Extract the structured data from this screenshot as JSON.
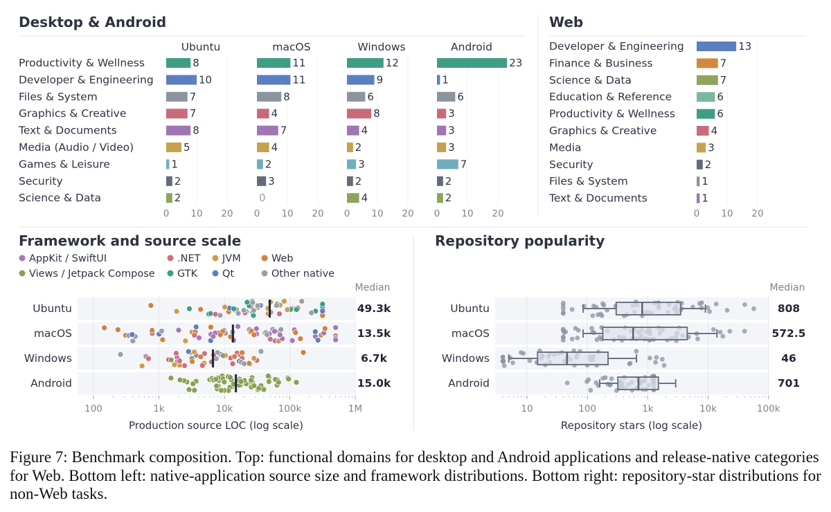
{
  "sections": {
    "desktop_android": "Desktop & Android",
    "web": "Web",
    "framework": "Framework and source scale",
    "popularity": "Repository popularity"
  },
  "caption": "Figure 7: Benchmark composition. Top: functional domains for desktop and Android applications and release-native categories for Web. Bottom left: native-application source size and framework distributions. Bottom right: repository-star distributions for non-Web tasks.",
  "colors": {
    "productivity": "#3f9e84",
    "developer": "#5b7fbf",
    "files": "#8c949f",
    "graphics": "#c96a7a",
    "text": "#9f76b3",
    "media": "#c6a14f",
    "games": "#6faebe",
    "security": "#646b78",
    "science": "#8ea45c",
    "finance": "#d18940",
    "education": "#7bb79d"
  },
  "chart_data": [
    {
      "type": "bar",
      "orientation": "horizontal",
      "section": "Desktop & Android",
      "categories": [
        "Productivity & Wellness",
        "Developer & Engineering",
        "Files & System",
        "Graphics & Creative",
        "Text & Documents",
        "Media (Audio / Video)",
        "Games & Leisure",
        "Security",
        "Science & Data"
      ],
      "category_colors": [
        "productivity",
        "developer",
        "files",
        "graphics",
        "text",
        "media",
        "games",
        "security",
        "science"
      ],
      "series": [
        {
          "name": "Ubuntu",
          "values": [
            8,
            10,
            7,
            7,
            8,
            5,
            1,
            2,
            2
          ]
        },
        {
          "name": "macOS",
          "values": [
            11,
            11,
            8,
            4,
            7,
            4,
            2,
            3,
            0
          ]
        },
        {
          "name": "Windows",
          "values": [
            12,
            9,
            6,
            8,
            4,
            2,
            3,
            2,
            4
          ]
        },
        {
          "name": "Android",
          "values": [
            23,
            1,
            6,
            3,
            3,
            3,
            7,
            2,
            2
          ]
        }
      ],
      "xticks": [
        0,
        10,
        20
      ],
      "xlim": [
        0,
        25
      ]
    },
    {
      "type": "bar",
      "orientation": "horizontal",
      "section": "Web",
      "categories": [
        "Developer & Engineering",
        "Finance & Business",
        "Science & Data",
        "Education & Reference",
        "Productivity & Wellness",
        "Graphics & Creative",
        "Media",
        "Security",
        "Files & System",
        "Text & Documents"
      ],
      "category_colors": [
        "developer",
        "finance",
        "science",
        "education",
        "productivity",
        "graphics",
        "media",
        "security",
        "files",
        "text"
      ],
      "values": [
        13,
        7,
        7,
        6,
        6,
        4,
        3,
        2,
        1,
        1
      ],
      "xticks": [
        0,
        10,
        20
      ],
      "xlim": [
        0,
        23
      ]
    },
    {
      "type": "scatter",
      "section": "Framework and source scale",
      "xlabel": "Production source LOC (log scale)",
      "xscale": "log",
      "xlim": [
        60,
        1000000
      ],
      "xticks": [
        100,
        1000,
        10000,
        100000,
        1000000
      ],
      "xtick_labels": [
        "100",
        "1k",
        "10k",
        "100k",
        "1M"
      ],
      "median_label": "Median",
      "legend": [
        {
          "name": "AppKit / SwiftUI",
          "color": "#a678bc"
        },
        {
          "name": ".NET",
          "color": "#cf6f7e"
        },
        {
          "name": "JVM",
          "color": "#cf9b4f"
        },
        {
          "name": "Web",
          "color": "#d0823f"
        },
        {
          "name": "Views / Jetpack Compose",
          "color": "#8aa052"
        },
        {
          "name": "GTK",
          "color": "#3f9e84"
        },
        {
          "name": "Qt",
          "color": "#5b7fbf"
        },
        {
          "name": "Other native",
          "color": "#9aa0aa"
        }
      ],
      "rows": [
        {
          "name": "Ubuntu",
          "median": 49300,
          "median_label": "49.3k"
        },
        {
          "name": "macOS",
          "median": 13500,
          "median_label": "13.5k"
        },
        {
          "name": "Windows",
          "median": 6700,
          "median_label": "6.7k"
        },
        {
          "name": "Android",
          "median": 15000,
          "median_label": "15.0k"
        }
      ]
    },
    {
      "type": "box",
      "section": "Repository popularity",
      "xlabel": "Repository stars (log scale)",
      "xscale": "log",
      "xlim": [
        3,
        100000
      ],
      "xticks": [
        10,
        100,
        1000,
        10000,
        100000
      ],
      "xtick_labels": [
        "10",
        "100",
        "1k",
        "10k",
        "100k"
      ],
      "median_label": "Median",
      "rows": [
        {
          "name": "Ubuntu",
          "median": 808,
          "median_label": "808",
          "q1": 300,
          "q3": 3500,
          "whisker_low": 85,
          "whisker_high": 9000
        },
        {
          "name": "macOS",
          "median": 572.5,
          "median_label": "572.5",
          "q1": 180,
          "q3": 4500,
          "whisker_low": 85,
          "whisker_high": 14000
        },
        {
          "name": "Windows",
          "median": 46,
          "median_label": "46",
          "q1": 15,
          "q3": 220,
          "whisker_low": 5,
          "whisker_high": 650
        },
        {
          "name": "Android",
          "median": 701,
          "median_label": "701",
          "q1": 320,
          "q3": 1500,
          "whisker_low": 160,
          "whisker_high": 2900
        }
      ]
    }
  ]
}
